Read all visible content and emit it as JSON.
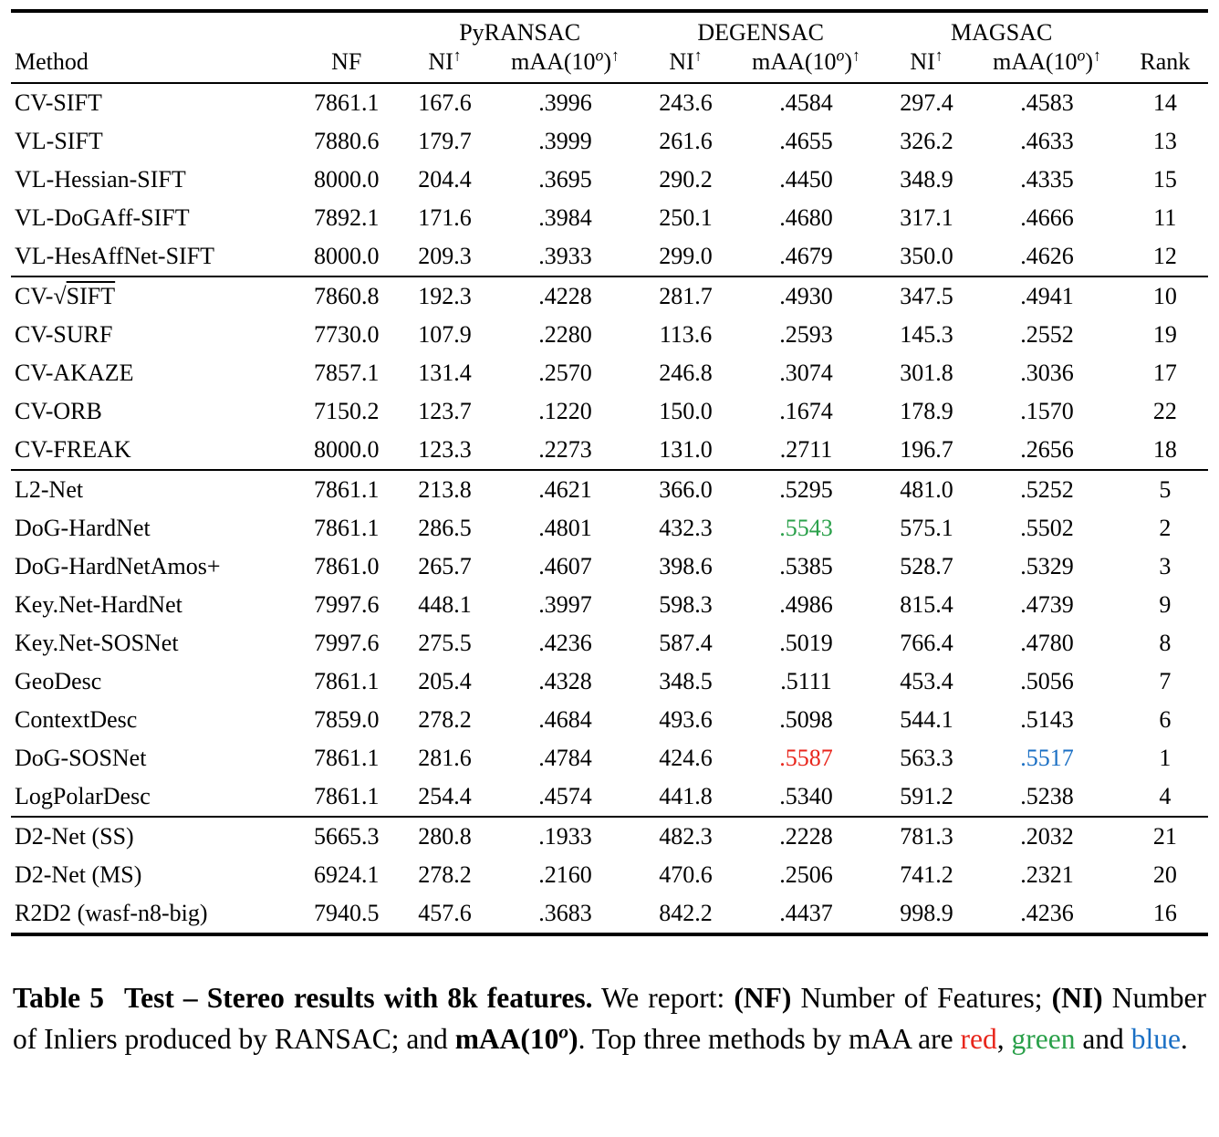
{
  "colors": {
    "red": "#e8261c",
    "green": "#2aa04a",
    "blue": "#1a6fc4",
    "black": "#000000"
  },
  "table": {
    "group_headers": [
      {
        "label": "",
        "span": 2
      },
      {
        "label": "PyRANSAC",
        "span": 2
      },
      {
        "label": "DEGENSAC",
        "span": 2
      },
      {
        "label": "MAGSAC",
        "span": 2
      },
      {
        "label": "",
        "span": 1
      }
    ],
    "columns": [
      {
        "key": "method",
        "align": "left",
        "colclass": "c-method",
        "segments": [
          {
            "t": "Method"
          }
        ]
      },
      {
        "key": "nf",
        "align": "center",
        "colclass": "c-nf",
        "segments": [
          {
            "t": "NF"
          }
        ]
      },
      {
        "key": "ni_py",
        "align": "center",
        "colclass": "c-ni",
        "segments": [
          {
            "t": "NI"
          },
          {
            "t": "↑",
            "sup": true
          }
        ]
      },
      {
        "key": "maa_py",
        "align": "center",
        "colclass": "c-maa",
        "segments": [
          {
            "t": "mAA(10"
          },
          {
            "t": "o",
            "sup": true,
            "italic": true
          },
          {
            "t": ")"
          },
          {
            "t": "↑",
            "sup": true
          }
        ]
      },
      {
        "key": "ni_dg",
        "align": "center",
        "colclass": "c-ni",
        "segments": [
          {
            "t": "NI"
          },
          {
            "t": "↑",
            "sup": true
          }
        ]
      },
      {
        "key": "maa_dg",
        "align": "center",
        "colclass": "c-maa",
        "segments": [
          {
            "t": "mAA(10"
          },
          {
            "t": "o",
            "sup": true,
            "italic": true
          },
          {
            "t": ")"
          },
          {
            "t": "↑",
            "sup": true
          }
        ]
      },
      {
        "key": "ni_mg",
        "align": "center",
        "colclass": "c-ni",
        "segments": [
          {
            "t": "NI"
          },
          {
            "t": "↑",
            "sup": true
          }
        ]
      },
      {
        "key": "maa_mg",
        "align": "center",
        "colclass": "c-maa",
        "segments": [
          {
            "t": "mAA(10"
          },
          {
            "t": "o",
            "sup": true,
            "italic": true
          },
          {
            "t": ")"
          },
          {
            "t": "↑",
            "sup": true
          }
        ]
      },
      {
        "key": "rank",
        "align": "center",
        "colclass": "c-rank",
        "segments": [
          {
            "t": "Rank"
          }
        ]
      }
    ],
    "groups": [
      {
        "rows": [
          [
            "CV-SIFT",
            "7861.1",
            "167.6",
            ".3996",
            "243.6",
            ".4584",
            "297.4",
            ".4583",
            "14"
          ],
          [
            "VL-SIFT",
            "7880.6",
            "179.7",
            ".3999",
            "261.6",
            ".4655",
            "326.2",
            ".4633",
            "13"
          ],
          [
            "VL-Hessian-SIFT",
            "8000.0",
            "204.4",
            ".3695",
            "290.2",
            ".4450",
            "348.9",
            ".4335",
            "15"
          ],
          [
            "VL-DoGAff-SIFT",
            "7892.1",
            "171.6",
            ".3984",
            "250.1",
            ".4680",
            "317.1",
            ".4666",
            "11"
          ],
          [
            "VL-HesAffNet-SIFT",
            "8000.0",
            "209.3",
            ".3933",
            "299.0",
            ".4679",
            "350.0",
            ".4626",
            "12"
          ]
        ]
      },
      {
        "rows": [
          [
            "CV-√SIFT",
            "7860.8",
            "192.3",
            ".4228",
            "281.7",
            ".4930",
            "347.5",
            ".4941",
            "10"
          ],
          [
            "CV-SURF",
            "7730.0",
            "107.9",
            ".2280",
            "113.6",
            ".2593",
            "145.3",
            ".2552",
            "19"
          ],
          [
            "CV-AKAZE",
            "7857.1",
            "131.4",
            ".2570",
            "246.8",
            ".3074",
            "301.8",
            ".3036",
            "17"
          ],
          [
            "CV-ORB",
            "7150.2",
            "123.7",
            ".1220",
            "150.0",
            ".1674",
            "178.9",
            ".1570",
            "22"
          ],
          [
            "CV-FREAK",
            "8000.0",
            "123.3",
            ".2273",
            "131.0",
            ".2711",
            "196.7",
            ".2656",
            "18"
          ]
        ]
      },
      {
        "rows": [
          [
            "L2-Net",
            "7861.1",
            "213.8",
            ".4621",
            "366.0",
            ".5295",
            "481.0",
            ".5252",
            "5"
          ],
          [
            "DoG-HardNet",
            "7861.1",
            "286.5",
            ".4801",
            "432.3",
            ".5543",
            "575.1",
            ".5502",
            "2"
          ],
          [
            "DoG-HardNetAmos+",
            "7861.0",
            "265.7",
            ".4607",
            "398.6",
            ".5385",
            "528.7",
            ".5329",
            "3"
          ],
          [
            "Key.Net-HardNet",
            "7997.6",
            "448.1",
            ".3997",
            "598.3",
            ".4986",
            "815.4",
            ".4739",
            "9"
          ],
          [
            "Key.Net-SOSNet",
            "7997.6",
            "275.5",
            ".4236",
            "587.4",
            ".5019",
            "766.4",
            ".4780",
            "8"
          ],
          [
            "GeoDesc",
            "7861.1",
            "205.4",
            ".4328",
            "348.5",
            ".5111",
            "453.4",
            ".5056",
            "7"
          ],
          [
            "ContextDesc",
            "7859.0",
            "278.2",
            ".4684",
            "493.6",
            ".5098",
            "544.1",
            ".5143",
            "6"
          ],
          [
            "DoG-SOSNet",
            "7861.1",
            "281.6",
            ".4784",
            "424.6",
            ".5587",
            "563.3",
            ".5517",
            "1"
          ],
          [
            "LogPolarDesc",
            "7861.1",
            "254.4",
            ".4574",
            "441.8",
            ".5340",
            "591.2",
            ".5238",
            "4"
          ]
        ]
      },
      {
        "rows": [
          [
            "D2-Net (SS)",
            "5665.3",
            "280.8",
            ".1933",
            "482.3",
            ".2228",
            "781.3",
            ".2032",
            "21"
          ],
          [
            "D2-Net (MS)",
            "6924.1",
            "278.2",
            ".2160",
            "470.6",
            ".2506",
            "741.2",
            ".2321",
            "20"
          ],
          [
            "R2D2 (wasf-n8-big)",
            "7940.5",
            "457.6",
            ".3683",
            "842.2",
            ".4437",
            "998.9",
            ".4236",
            "16"
          ]
        ]
      }
    ],
    "highlights": [
      {
        "group": 2,
        "row": 1,
        "col": 5,
        "color": "green"
      },
      {
        "group": 2,
        "row": 7,
        "col": 5,
        "color": "red"
      },
      {
        "group": 2,
        "row": 7,
        "col": 7,
        "color": "blue"
      }
    ]
  },
  "caption": {
    "segments": [
      {
        "t": "Table 5",
        "bold": true,
        "gap": true
      },
      {
        "t": "Test – Stereo results with 8k features.",
        "bold": true
      },
      {
        "t": " We report: "
      },
      {
        "t": "(NF)",
        "bold": true
      },
      {
        "t": " Number of Features; "
      },
      {
        "t": "(NI)",
        "bold": true
      },
      {
        "t": " Number of Inliers produced by RANSAC; and "
      },
      {
        "t": "mAA(10",
        "bold": true
      },
      {
        "t": "o",
        "bold": true,
        "sup": true,
        "italic": true
      },
      {
        "t": ")",
        "bold": true
      },
      {
        "t": ". Top three methods by mAA are "
      },
      {
        "t": "red",
        "color": "red"
      },
      {
        "t": ", "
      },
      {
        "t": "green",
        "color": "green"
      },
      {
        "t": " and "
      },
      {
        "t": "blue",
        "color": "blue"
      },
      {
        "t": "."
      }
    ]
  }
}
